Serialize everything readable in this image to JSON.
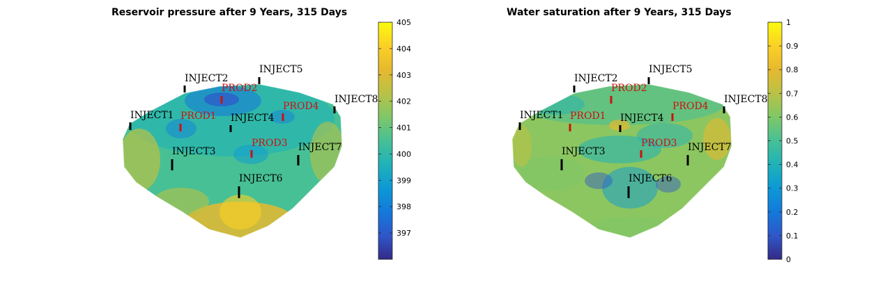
{
  "chart_data": [
    {
      "type": "heatmap",
      "title": "Reservoir pressure after 9 Years, 315 Days",
      "colorbar": {
        "range": [
          396,
          405
        ],
        "ticks": [
          397,
          398,
          399,
          400,
          401,
          402,
          403,
          404,
          405
        ],
        "colormap": "parula"
      },
      "wells": [
        {
          "name": "INJECT1",
          "kind": "injector"
        },
        {
          "name": "INJECT2",
          "kind": "injector"
        },
        {
          "name": "INJECT3",
          "kind": "injector"
        },
        {
          "name": "INJECT4",
          "kind": "injector"
        },
        {
          "name": "INJECT5",
          "kind": "injector"
        },
        {
          "name": "INJECT6",
          "kind": "injector"
        },
        {
          "name": "INJECT7",
          "kind": "injector"
        },
        {
          "name": "INJECT8",
          "kind": "injector"
        },
        {
          "name": "PROD1",
          "kind": "producer"
        },
        {
          "name": "PROD2",
          "kind": "producer"
        },
        {
          "name": "PROD3",
          "kind": "producer"
        },
        {
          "name": "PROD4",
          "kind": "producer"
        }
      ]
    },
    {
      "type": "heatmap",
      "title": "Water saturation after 9 Years, 315 Days",
      "colorbar": {
        "range": [
          0,
          1
        ],
        "ticks": [
          0,
          0.1,
          0.2,
          0.3,
          0.4,
          0.5,
          0.6,
          0.7,
          0.8,
          0.9,
          1
        ],
        "colormap": "parula"
      },
      "wells": [
        {
          "name": "INJECT1",
          "kind": "injector"
        },
        {
          "name": "INJECT2",
          "kind": "injector"
        },
        {
          "name": "INJECT3",
          "kind": "injector"
        },
        {
          "name": "INJECT4",
          "kind": "injector"
        },
        {
          "name": "INJECT5",
          "kind": "injector"
        },
        {
          "name": "INJECT6",
          "kind": "injector"
        },
        {
          "name": "INJECT7",
          "kind": "injector"
        },
        {
          "name": "INJECT8",
          "kind": "injector"
        },
        {
          "name": "PROD1",
          "kind": "producer"
        },
        {
          "name": "PROD2",
          "kind": "producer"
        },
        {
          "name": "PROD3",
          "kind": "producer"
        },
        {
          "name": "PROD4",
          "kind": "producer"
        }
      ]
    }
  ],
  "colors": {
    "injector": "#000000",
    "producer": "#cc1111",
    "parula": [
      "#352a87",
      "#2f57c9",
      "#1479db",
      "#0c99d6",
      "#1fb2b8",
      "#47c095",
      "#7fc768",
      "#b9c246",
      "#e6b92f",
      "#fbd025",
      "#f9fb0e"
    ]
  }
}
